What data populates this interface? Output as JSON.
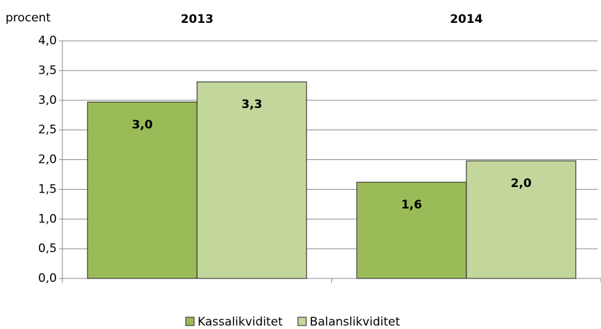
{
  "chart_data": {
    "type": "bar",
    "ylabel": "procent",
    "categories": [
      "2013",
      "2014"
    ],
    "series": [
      {
        "name": "Kassalikviditet",
        "color": "#9bbb59",
        "values": [
          2.97,
          1.62
        ],
        "value_labels": [
          "3,0",
          "1,6"
        ]
      },
      {
        "name": "Balanslikviditet",
        "color": "#c3d69b",
        "values": [
          3.31,
          1.98
        ],
        "value_labels": [
          "3,3",
          "2,0"
        ]
      }
    ],
    "ylim": [
      0,
      4
    ],
    "yticks": [
      {
        "value": 0,
        "label": "0,0"
      },
      {
        "value": 0.5,
        "label": "0,5"
      },
      {
        "value": 1,
        "label": "1,0"
      },
      {
        "value": 1.5,
        "label": "1,5"
      },
      {
        "value": 2,
        "label": "2,0"
      },
      {
        "value": 2.5,
        "label": "2,5"
      },
      {
        "value": 3,
        "label": "3,0"
      },
      {
        "value": 3.5,
        "label": "3,5"
      },
      {
        "value": 4,
        "label": "4,0"
      }
    ],
    "grid": true,
    "legend": "bottom"
  }
}
